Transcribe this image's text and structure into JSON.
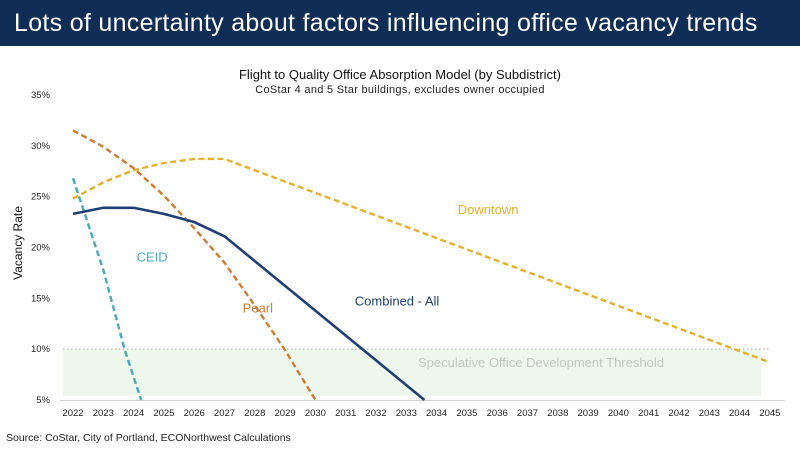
{
  "header": {
    "title": "Lots of uncertainty about factors influencing office vacancy trends"
  },
  "source": "Source: CoStar, City of Portland, ECONorthwest Calculations",
  "chart_data": {
    "type": "line",
    "title": "Flight to Quality Office Absorption Model (by Subdistrict)",
    "subtitle": "CoStar 4 and 5 Star buildings, excludes owner occupied",
    "xlabel": "",
    "ylabel": "Vacancy Rate",
    "xlim": [
      2022,
      2045
    ],
    "ylim": [
      5,
      35
    ],
    "x_ticks": [
      "2022",
      "2023",
      "2024",
      "2025",
      "2026",
      "2027",
      "2028",
      "2029",
      "2030",
      "2031",
      "2032",
      "2033",
      "2034",
      "2035",
      "2036",
      "2037",
      "2038",
      "2039",
      "2040",
      "2041",
      "2042",
      "2043",
      "2044",
      "2045"
    ],
    "y_ticks": [
      "5%",
      "10%",
      "15%",
      "20%",
      "25%",
      "30%",
      "35%"
    ],
    "grid": false,
    "threshold": {
      "value": 10,
      "label": "Speculative Office Development Threshold",
      "band": [
        5.4,
        10
      ],
      "band_color": "#eef7ec"
    },
    "series": [
      {
        "name": "Downtown",
        "color": "#e2b12f",
        "dash": true,
        "x": [
          2022,
          2023,
          2024,
          2025,
          2026,
          2027,
          2045
        ],
        "y": [
          24.8,
          26.4,
          27.6,
          28.3,
          28.7,
          28.7,
          8.7
        ]
      },
      {
        "name": "Pearl",
        "color": "#c97d35",
        "dash": true,
        "x": [
          2022,
          2023,
          2024,
          2025,
          2026,
          2027,
          2028,
          2029,
          2030
        ],
        "y": [
          31.5,
          29.9,
          27.8,
          25.1,
          21.9,
          18.5,
          14.3,
          9.9,
          5.0
        ]
      },
      {
        "name": "CEID",
        "color": "#4aa8b8",
        "dash": true,
        "x": [
          2022,
          2023,
          2023.7,
          2024.25
        ],
        "y": [
          26.8,
          17.8,
          10,
          5
        ]
      },
      {
        "name": "Combined - All",
        "color": "#1f3f73",
        "dash": false,
        "x": [
          2022,
          2023,
          2024,
          2025,
          2026,
          2027,
          2033.6
        ],
        "y": [
          23.3,
          23.9,
          23.9,
          23.3,
          22.5,
          21.1,
          5
        ]
      }
    ],
    "annotations": [
      {
        "text": "Downtown",
        "series": "Downtown",
        "x": 2034.7,
        "y": 23.3
      },
      {
        "text": "Pearl",
        "series": "Pearl",
        "x": 2027.6,
        "y": 13.6
      },
      {
        "text": "CEID",
        "series": "CEID",
        "x": 2024.1,
        "y": 18.6
      },
      {
        "text": "Combined - All",
        "series": "Combined - All",
        "x": 2031.3,
        "y": 14.3
      }
    ]
  }
}
